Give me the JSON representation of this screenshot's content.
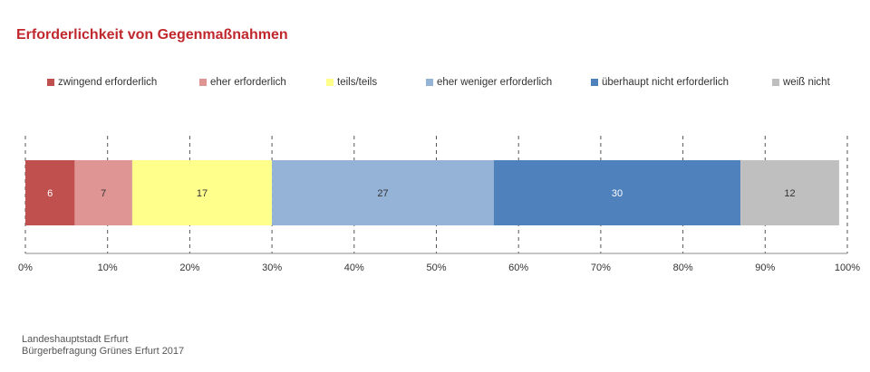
{
  "title": "Erforderlichkeit von Gegenmaßnahmen",
  "footer": {
    "line1": "Landeshauptstadt Erfurt",
    "line2": "Bürgerbefragung Grünes Erfurt 2017"
  },
  "chart_data": {
    "type": "bar",
    "orientation": "horizontal-stacked-100",
    "title": "Erforderlichkeit von Gegenmaßnahmen",
    "xlim": [
      0,
      100
    ],
    "x_ticks": [
      "0%",
      "10%",
      "20%",
      "30%",
      "40%",
      "50%",
      "60%",
      "70%",
      "80%",
      "90%",
      "100%"
    ],
    "legend_position": "top",
    "series": [
      {
        "name": "zwingend erforderlich",
        "value": 6,
        "color": "#c0504d",
        "label_color": "#ffffff"
      },
      {
        "name": "eher erforderlich",
        "value": 7,
        "color": "#de9594",
        "label_color": "#333333"
      },
      {
        "name": "teils/teils",
        "value": 17,
        "color": "#ffff8c",
        "label_color": "#333333"
      },
      {
        "name": "eher weniger erforderlich",
        "value": 27,
        "color": "#95b3d7",
        "label_color": "#333333"
      },
      {
        "name": "überhaupt nicht erforderlich",
        "value": 30,
        "color": "#4f81bd",
        "label_color": "#ffffff"
      },
      {
        "name": "weiß nicht",
        "value": 12,
        "color": "#bfbfbf",
        "label_color": "#333333"
      }
    ]
  }
}
